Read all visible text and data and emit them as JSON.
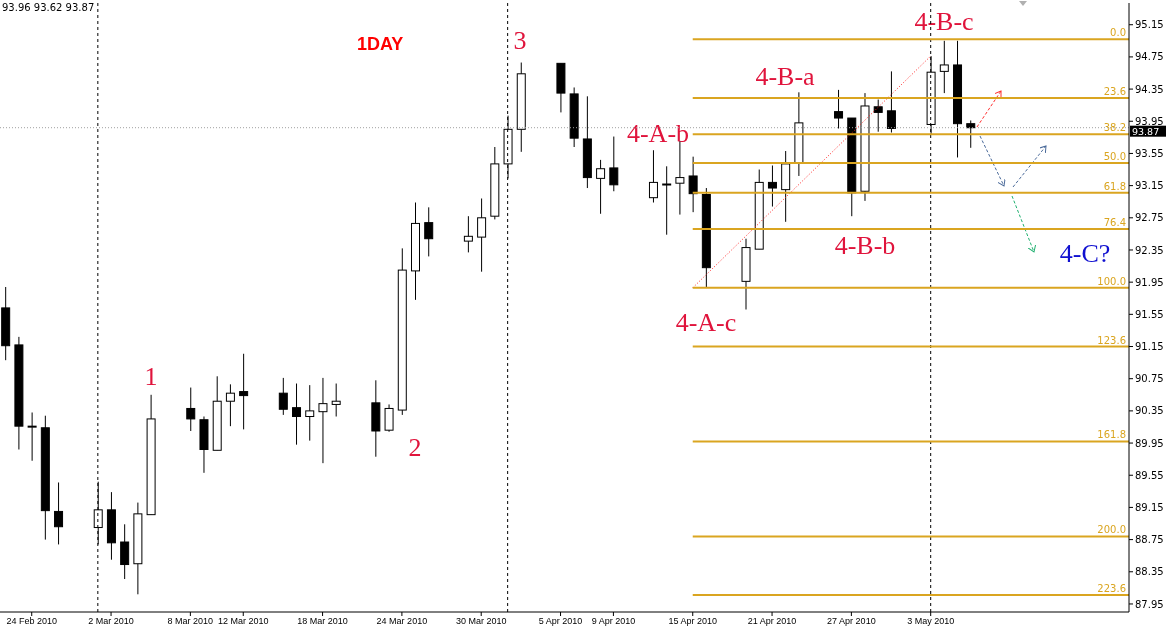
{
  "chart_data": {
    "type": "candlestick",
    "title": "1DAY",
    "x": [
      "2010-02-22",
      "2010-02-23",
      "2010-02-24",
      "2010-02-25",
      "2010-02-26",
      "2010-03-01",
      "2010-03-02",
      "2010-03-03",
      "2010-03-04",
      "2010-03-05",
      "2010-03-08",
      "2010-03-09",
      "2010-03-10",
      "2010-03-11",
      "2010-03-12",
      "2010-03-15",
      "2010-03-16",
      "2010-03-17",
      "2010-03-18",
      "2010-03-19",
      "2010-03-22",
      "2010-03-23",
      "2010-03-24",
      "2010-03-25",
      "2010-03-26",
      "2010-03-29",
      "2010-03-30",
      "2010-03-31",
      "2010-04-01",
      "2010-04-02",
      "2010-04-05",
      "2010-04-06",
      "2010-04-07",
      "2010-04-08",
      "2010-04-09",
      "2010-04-12",
      "2010-04-13",
      "2010-04-14",
      "2010-04-15",
      "2010-04-16",
      "2010-04-19",
      "2010-04-20",
      "2010-04-21",
      "2010-04-22",
      "2010-04-23",
      "2010-04-26",
      "2010-04-27",
      "2010-04-28",
      "2010-04-29",
      "2010-04-30",
      "2010-05-03",
      "2010-05-04",
      "2010-05-05",
      "2010-05-06"
    ],
    "ohlc": [
      [
        91.63,
        91.89,
        90.98,
        91.16
      ],
      [
        91.17,
        91.27,
        89.87,
        90.16
      ],
      [
        90.16,
        90.33,
        89.73,
        90.16
      ],
      [
        90.14,
        90.29,
        88.75,
        89.11
      ],
      [
        89.1,
        89.46,
        88.69,
        88.91
      ],
      [
        88.9,
        89.47,
        88.69,
        89.12
      ],
      [
        89.12,
        89.34,
        88.5,
        88.71
      ],
      [
        88.72,
        88.94,
        88.26,
        88.44
      ],
      [
        88.45,
        89.21,
        88.07,
        89.07
      ],
      [
        89.06,
        90.55,
        89.06,
        90.25
      ],
      [
        90.38,
        90.64,
        90.1,
        90.25
      ],
      [
        90.24,
        90.28,
        89.58,
        89.87
      ],
      [
        89.86,
        90.78,
        89.86,
        90.47
      ],
      [
        90.47,
        90.68,
        90.16,
        90.57
      ],
      [
        90.59,
        91.06,
        90.12,
        90.54
      ],
      [
        90.57,
        90.76,
        90.3,
        90.37
      ],
      [
        90.39,
        90.69,
        89.93,
        90.28
      ],
      [
        90.28,
        90.67,
        89.98,
        90.35
      ],
      [
        90.34,
        90.76,
        89.7,
        90.44
      ],
      [
        90.43,
        90.69,
        90.28,
        90.47
      ],
      [
        90.45,
        90.73,
        89.78,
        90.1
      ],
      [
        90.11,
        90.43,
        90.09,
        90.38
      ],
      [
        90.36,
        92.37,
        90.3,
        92.1
      ],
      [
        92.09,
        92.94,
        91.73,
        92.68
      ],
      [
        92.69,
        92.88,
        92.27,
        92.49
      ],
      [
        92.46,
        92.77,
        92.32,
        92.52
      ],
      [
        92.51,
        92.99,
        92.08,
        92.75
      ],
      [
        92.77,
        93.63,
        92.73,
        93.42
      ],
      [
        93.42,
        94.02,
        93.24,
        93.85
      ],
      [
        93.85,
        94.68,
        93.57,
        94.54
      ],
      [
        94.67,
        94.67,
        94.06,
        94.3
      ],
      [
        94.29,
        94.37,
        93.63,
        93.74
      ],
      [
        93.73,
        94.26,
        93.12,
        93.25
      ],
      [
        93.24,
        93.47,
        92.8,
        93.36
      ],
      [
        93.37,
        93.76,
        93.08,
        93.16
      ],
      [
        93.0,
        93.59,
        92.94,
        93.19
      ],
      [
        93.17,
        93.39,
        92.54,
        93.17
      ],
      [
        93.18,
        93.7,
        92.79,
        93.25
      ],
      [
        93.27,
        93.51,
        92.82,
        93.05
      ],
      [
        93.04,
        93.12,
        91.88,
        92.13
      ],
      [
        91.96,
        92.49,
        91.61,
        92.38
      ],
      [
        92.36,
        93.35,
        92.36,
        93.19
      ],
      [
        93.19,
        93.4,
        92.89,
        93.12
      ],
      [
        93.1,
        93.58,
        92.7,
        93.42
      ],
      [
        93.43,
        94.31,
        93.27,
        93.93
      ],
      [
        94.07,
        94.34,
        93.86,
        93.99
      ],
      [
        93.99,
        93.99,
        92.77,
        93.06
      ],
      [
        93.08,
        94.3,
        92.96,
        94.14
      ],
      [
        94.13,
        94.22,
        93.82,
        94.06
      ],
      [
        94.08,
        94.57,
        93.81,
        93.86
      ],
      [
        93.91,
        94.76,
        93.79,
        94.56
      ],
      [
        94.57,
        94.95,
        94.3,
        94.65
      ],
      [
        94.65,
        94.95,
        93.5,
        93.92
      ],
      [
        93.92,
        93.96,
        93.62,
        93.87
      ]
    ],
    "xlim": [
      "2010-02-22",
      "2010-05-18"
    ],
    "xticks": [
      {
        "value": "2010-02-24",
        "label": "24 Feb 2010"
      },
      {
        "value": "2010-03-02",
        "label": "2 Mar 2010"
      },
      {
        "value": "2010-03-08",
        "label": "8 Mar 2010"
      },
      {
        "value": "2010-03-12",
        "label": "12 Mar 2010"
      },
      {
        "value": "2010-03-18",
        "label": "18 Mar 2010"
      },
      {
        "value": "2010-03-24",
        "label": "24 Mar 2010"
      },
      {
        "value": "2010-03-30",
        "label": "30 Mar 2010"
      },
      {
        "value": "2010-04-05",
        "label": "5 Apr 2010"
      },
      {
        "value": "2010-04-09",
        "label": "9 Apr 2010"
      },
      {
        "value": "2010-04-15",
        "label": "15 Apr 2010"
      },
      {
        "value": "2010-04-21",
        "label": "21 Apr 2010"
      },
      {
        "value": "2010-04-27",
        "label": "27 Apr 2010"
      },
      {
        "value": "2010-05-03",
        "label": "3 May 2010"
      }
    ],
    "ylim": [
      87.85,
      95.42
    ],
    "yticks": [
      87.95,
      88.35,
      88.75,
      89.15,
      89.55,
      89.95,
      90.35,
      90.75,
      91.15,
      91.55,
      91.95,
      92.35,
      92.75,
      93.15,
      93.55,
      93.95,
      94.35,
      94.75,
      95.15
    ],
    "series": [
      {
        "type": "line",
        "x": [
          "2010-04-15",
          "2010-05-03"
        ],
        "values": [
          91.88,
          94.76
        ],
        "color": "#ff2020",
        "line_style": "dotted"
      },
      {
        "type": "line",
        "x": [
          "2010-04-15",
          "2010-05-18"
        ],
        "values": [
          94.97,
          94.97
        ],
        "color": "#daa520"
      },
      {
        "type": "line",
        "x": [
          "2010-04-15",
          "2010-05-18"
        ],
        "values": [
          94.24,
          94.24
        ],
        "color": "#daa520"
      },
      {
        "type": "line",
        "x": [
          "2010-04-15",
          "2010-05-18"
        ],
        "values": [
          93.79,
          93.79
        ],
        "color": "#daa520"
      },
      {
        "type": "line",
        "x": [
          "2010-04-15",
          "2010-05-18"
        ],
        "values": [
          93.43,
          93.43
        ],
        "color": "#daa520"
      },
      {
        "type": "line",
        "x": [
          "2010-04-15",
          "2010-05-18"
        ],
        "values": [
          93.06,
          93.06
        ],
        "color": "#daa520"
      },
      {
        "type": "line",
        "x": [
          "2010-04-15",
          "2010-05-18"
        ],
        "values": [
          92.61,
          92.61
        ],
        "color": "#daa520"
      },
      {
        "type": "line",
        "x": [
          "2010-04-15",
          "2010-05-18"
        ],
        "values": [
          91.88,
          91.88
        ],
        "color": "#daa520"
      },
      {
        "type": "line",
        "x": [
          "2010-04-15",
          "2010-05-18"
        ],
        "values": [
          91.15,
          91.15
        ],
        "color": "#daa520"
      },
      {
        "type": "line",
        "x": [
          "2010-04-15",
          "2010-05-18"
        ],
        "values": [
          89.97,
          89.97
        ],
        "color": "#daa520"
      },
      {
        "type": "line",
        "x": [
          "2010-04-15",
          "2010-05-18"
        ],
        "values": [
          88.79,
          88.79
        ],
        "color": "#daa520"
      },
      {
        "type": "line",
        "x": [
          "2010-04-15",
          "2010-05-18"
        ],
        "values": [
          88.06,
          88.06
        ],
        "color": "#daa520"
      }
    ],
    "ref_lines": [
      {
        "axis": "y",
        "value": 93.87,
        "label": "93.87",
        "color": "#a0a0a0",
        "line_style": "dotted"
      },
      {
        "axis": "x",
        "value": "2010-03-01",
        "color": "#000000",
        "line_style": "dashed"
      },
      {
        "axis": "x",
        "value": "2010-04-01",
        "color": "#000000",
        "line_style": "dashed"
      },
      {
        "axis": "x",
        "value": "2010-05-03",
        "color": "#000000",
        "line_style": "dashed"
      }
    ],
    "annotations": [
      "93.96 93.62 93.87",
      "1",
      "2",
      "3",
      "4-A-b",
      "4-A-c",
      "4-B-a",
      "4-B-b",
      "4-B-c",
      "4-C?",
      {
        "text": "0.0",
        "x": "2010-05-18",
        "y": 94.97
      },
      {
        "text": "23.6",
        "x": "2010-05-18",
        "y": 94.24
      },
      {
        "text": "38.2",
        "x": "2010-05-18",
        "y": 93.79
      },
      {
        "text": "50.0",
        "x": "2010-05-18",
        "y": 93.43
      },
      {
        "text": "61.8",
        "x": "2010-05-18",
        "y": 93.06
      },
      {
        "text": "76.4",
        "x": "2010-05-18",
        "y": 92.61
      },
      {
        "text": "100.0",
        "x": "2010-05-18",
        "y": 91.88
      },
      {
        "text": "123.6",
        "x": "2010-05-18",
        "y": 91.15
      },
      {
        "text": "161.8",
        "x": "2010-05-18",
        "y": 89.97
      },
      {
        "text": "200.0",
        "x": "2010-05-18",
        "y": 88.79
      },
      {
        "text": "223.6",
        "x": "2010-05-18",
        "y": 88.06
      }
    ]
  }
}
